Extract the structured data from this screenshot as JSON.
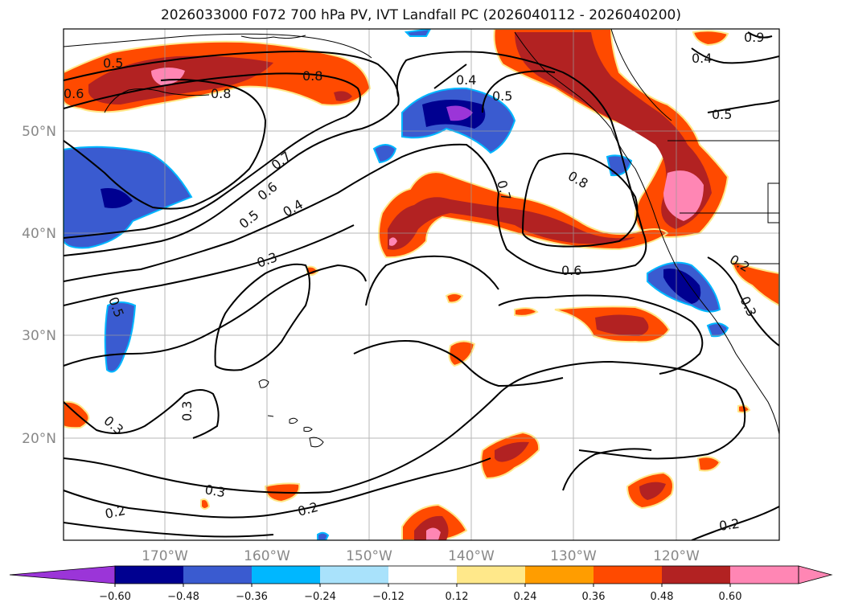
{
  "title": "2026033000 F072 700 hPa PV, IVT Landfall PC (2026040112 - 2026040200)",
  "map": {
    "lon_labels": [
      "170°W",
      "160°W",
      "150°W",
      "140°W",
      "130°W",
      "120°W"
    ],
    "lat_labels": [
      "50°N",
      "40°N",
      "30°N",
      "20°N"
    ]
  },
  "colorbar": {
    "ticks": [
      "−0.60",
      "−0.48",
      "−0.36",
      "−0.24",
      "−0.12",
      "0.12",
      "0.24",
      "0.36",
      "0.48",
      "0.60"
    ],
    "colors": [
      "#9b35d8",
      "#000090",
      "#3a5bd0",
      "#00b7ff",
      "#a9e2fb",
      "#ffffff",
      "#ffe88a",
      "#ff9d00",
      "#ff4a00",
      "#b22222",
      "#ff86b4",
      "#ff86b4"
    ]
  },
  "contour_labels": [
    "0.5",
    "0.6",
    "0.8",
    "0.8",
    "0.4",
    "0.5",
    "0.4",
    "0.5",
    "0.9",
    "0.7",
    "0.6",
    "0.5",
    "0.4",
    "0.3",
    "0.7",
    "0.8",
    "0.6",
    "0.2",
    "0.3",
    "0.5",
    "0.3",
    "0.3",
    "0.3",
    "0.2",
    "0.2",
    "0.2"
  ]
}
